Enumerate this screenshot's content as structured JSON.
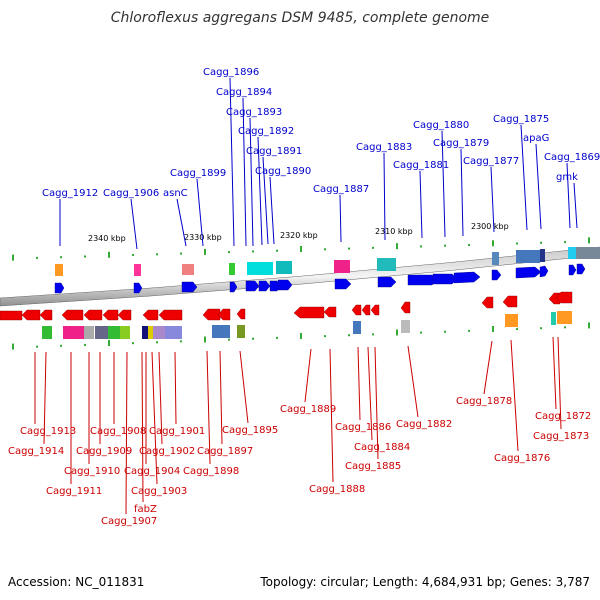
{
  "title": "Chloroflexus aggregans DSM 9485, complete genome",
  "footer": {
    "accession": "Accession: NC_011831",
    "summary": "Topology: circular; Length: 4,684,931 bp; Genes: 3,787"
  },
  "colors": {
    "plus_label": "#0000cc",
    "minus_label": "#cc0000",
    "plus_gene": "#0000ee",
    "minus_gene": "#ee0000",
    "tick": "#33aa33"
  },
  "kbp_marks": [
    "2340 kbp",
    "2330 kbp",
    "2320 kbp",
    "2310 kbp",
    "2300 kbp"
  ],
  "plus_labels": [
    "Cagg_1912",
    "Cagg_1906",
    "asnC",
    "Cagg_1899",
    "Cagg_1896",
    "Cagg_1894",
    "Cagg_1893",
    "Cagg_1892",
    "Cagg_1891",
    "Cagg_1890",
    "Cagg_1887",
    "Cagg_1883",
    "Cagg_1881",
    "Cagg_1880",
    "Cagg_1879",
    "Cagg_1877",
    "Cagg_1875",
    "apaG",
    "Cagg_1869",
    "gmk"
  ],
  "minus_labels": [
    "Cagg_1913",
    "Cagg_1914",
    "Cagg_1911",
    "Cagg_1910",
    "Cagg_1909",
    "Cagg_1908",
    "Cagg_1907",
    "fabZ",
    "Cagg_1904",
    "Cagg_1903",
    "Cagg_1902",
    "Cagg_1901",
    "Cagg_1898",
    "Cagg_1897",
    "Cagg_1895",
    "Cagg_1889",
    "Cagg_1888",
    "Cagg_1886",
    "Cagg_1884",
    "Cagg_1885",
    "Cagg_1882",
    "Cagg_1878",
    "Cagg_1876",
    "Cagg_1872",
    "Cagg_1873"
  ]
}
